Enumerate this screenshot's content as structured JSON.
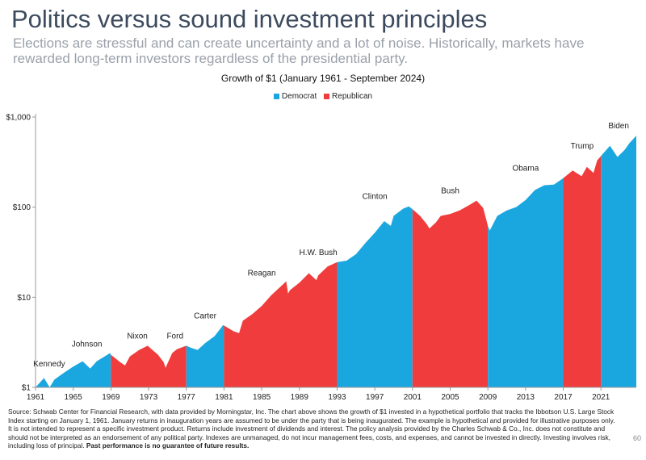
{
  "slide": {
    "title": "Politics versus sound investment principles",
    "subtitle": "Elections are stressful and can create uncertainty and a lot of noise. Historically, markets have rewarded long-term investors regardless of the presidential party.",
    "page_number": "60",
    "footnote": "Source: Schwab Center for Financial Research, with data provided by Morningstar, Inc. The chart above shows the growth of $1 invested in a hypothetical portfolio that tracks the Ibbotson U.S. Large Stock Index starting on January 1, 1961. January returns in inauguration years are assumed to be under the party that is being inaugurated. The example is hypothetical and provided for illustrative purposes only. It is not intended to represent a specific investment product. Returns include investment of dividends and interest. The policy analysis provided by the Charles Schwab & Co., Inc. does not constitute and should not be interpreted as an endorsement of any political party. Indexes are unmanaged, do not incur management fees, costs, and expenses, and cannot be invested in directly. Investing involves risk, including loss of principal.",
    "footnote_bold": "Past performance is no guarantee of future results."
  },
  "chart_data": {
    "type": "area",
    "title": "Growth of $1 (January 1961 - September 2024)",
    "y_scale": "log",
    "ylim": [
      1,
      1000
    ],
    "xlim": [
      1961,
      2024.75
    ],
    "y_ticks": [
      {
        "value": 1,
        "label": "$1"
      },
      {
        "value": 10,
        "label": "$10"
      },
      {
        "value": 100,
        "label": "$100"
      },
      {
        "value": 1000,
        "label": "$1,000"
      }
    ],
    "x_ticks": [
      1961,
      1965,
      1969,
      1973,
      1977,
      1981,
      1985,
      1989,
      1993,
      1997,
      2001,
      2005,
      2009,
      2013,
      2017,
      2021
    ],
    "legend": [
      {
        "name": "Democrat",
        "color": "#1aa7e0"
      },
      {
        "name": "Republican",
        "color": "#f03c3c"
      }
    ],
    "legend_position": "top-center",
    "grid": false,
    "terms": [
      {
        "president": "Kennedy",
        "party": "Democrat",
        "start": 1961,
        "end": 1963.9
      },
      {
        "president": "Johnson",
        "party": "Democrat",
        "start": 1963.9,
        "end": 1969
      },
      {
        "president": "Nixon",
        "party": "Republican",
        "start": 1969,
        "end": 1974.6
      },
      {
        "president": "Ford",
        "party": "Republican",
        "start": 1974.6,
        "end": 1977
      },
      {
        "president": "Carter",
        "party": "Democrat",
        "start": 1977,
        "end": 1981
      },
      {
        "president": "Reagan",
        "party": "Republican",
        "start": 1981,
        "end": 1989
      },
      {
        "president": "H.W. Bush",
        "party": "Republican",
        "start": 1989,
        "end": 1993
      },
      {
        "president": "Clinton",
        "party": "Democrat",
        "start": 1993,
        "end": 2001
      },
      {
        "president": "Bush",
        "party": "Republican",
        "start": 2001,
        "end": 2009
      },
      {
        "president": "Obama",
        "party": "Democrat",
        "start": 2009,
        "end": 2017
      },
      {
        "president": "Trump",
        "party": "Republican",
        "start": 2017,
        "end": 2021
      },
      {
        "president": "Biden",
        "party": "Democrat",
        "start": 2021,
        "end": 2024.75
      }
    ],
    "series": [
      {
        "name": "Growth of $1",
        "points": [
          [
            1961,
            1.0
          ],
          [
            1961.9,
            1.27
          ],
          [
            1962.5,
            1.0
          ],
          [
            1963,
            1.22
          ],
          [
            1964,
            1.45
          ],
          [
            1965,
            1.7
          ],
          [
            1966,
            1.95
          ],
          [
            1966.8,
            1.62
          ],
          [
            1967.5,
            1.95
          ],
          [
            1968,
            2.1
          ],
          [
            1968.9,
            2.4
          ],
          [
            1969,
            2.3
          ],
          [
            1970,
            1.9
          ],
          [
            1970.5,
            1.75
          ],
          [
            1971,
            2.2
          ],
          [
            1972,
            2.6
          ],
          [
            1972.9,
            2.9
          ],
          [
            1973.5,
            2.55
          ],
          [
            1974,
            2.3
          ],
          [
            1974.6,
            1.9
          ],
          [
            1974.8,
            1.65
          ],
          [
            1975.5,
            2.4
          ],
          [
            1976,
            2.65
          ],
          [
            1977,
            2.9
          ],
          [
            1977.5,
            2.75
          ],
          [
            1978.2,
            2.6
          ],
          [
            1979,
            3.1
          ],
          [
            1980,
            3.7
          ],
          [
            1980.9,
            4.9
          ],
          [
            1981,
            4.85
          ],
          [
            1982,
            4.2
          ],
          [
            1982.6,
            4.0
          ],
          [
            1983,
            5.5
          ],
          [
            1984,
            6.5
          ],
          [
            1985,
            8.0
          ],
          [
            1986,
            10.5
          ],
          [
            1987.6,
            15.0
          ],
          [
            1987.8,
            11.0
          ],
          [
            1988,
            12.0
          ],
          [
            1989,
            14.5
          ],
          [
            1990,
            18.5
          ],
          [
            1990.8,
            15.5
          ],
          [
            1991,
            17.5
          ],
          [
            1992,
            22.0
          ],
          [
            1993,
            24.5
          ],
          [
            1994,
            25.5
          ],
          [
            1995,
            30.0
          ],
          [
            1996,
            40.0
          ],
          [
            1997,
            52.0
          ],
          [
            1998,
            70.0
          ],
          [
            1998.7,
            62.0
          ],
          [
            1999,
            80.0
          ],
          [
            2000,
            96.0
          ],
          [
            2000.6,
            102.0
          ],
          [
            2001,
            95.0
          ],
          [
            2001.8,
            80.0
          ],
          [
            2002.5,
            65.0
          ],
          [
            2002.8,
            58.0
          ],
          [
            2003.5,
            68.0
          ],
          [
            2004,
            80.0
          ],
          [
            2005,
            84.0
          ],
          [
            2006,
            92.0
          ],
          [
            2007,
            105.0
          ],
          [
            2007.8,
            118.0
          ],
          [
            2008.5,
            98.0
          ],
          [
            2009,
            62.0
          ],
          [
            2009.2,
            55.0
          ],
          [
            2010,
            80.0
          ],
          [
            2011,
            92.0
          ],
          [
            2012,
            100.0
          ],
          [
            2013,
            120.0
          ],
          [
            2014,
            155.0
          ],
          [
            2015,
            175.0
          ],
          [
            2016,
            178.0
          ],
          [
            2017,
            210.0
          ],
          [
            2018,
            255.0
          ],
          [
            2018.95,
            220.0
          ],
          [
            2019.5,
            280.0
          ],
          [
            2020.2,
            240.0
          ],
          [
            2020.6,
            330.0
          ],
          [
            2021,
            370.0
          ],
          [
            2021.95,
            480.0
          ],
          [
            2022.75,
            360.0
          ],
          [
            2023.5,
            430.0
          ],
          [
            2024,
            510.0
          ],
          [
            2024.75,
            620.0
          ]
        ]
      }
    ]
  }
}
